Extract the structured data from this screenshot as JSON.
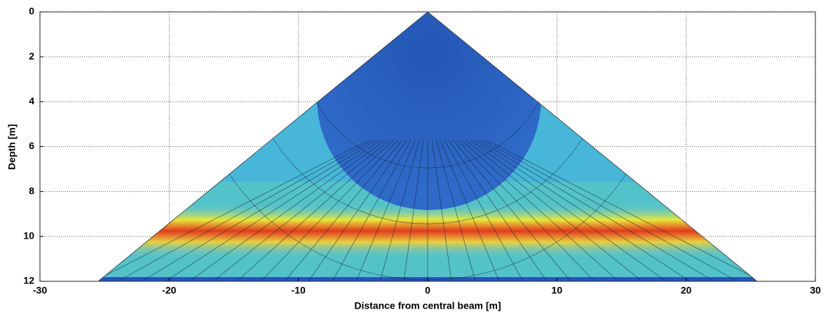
{
  "chart_data": {
    "type": "heatmap",
    "x_label": "Distance from central beam [m]",
    "y_label": "Depth [m]",
    "xlim": [
      -30,
      30
    ],
    "xticks": [
      -30,
      -20,
      -10,
      0,
      10,
      20,
      30
    ],
    "ylim": [
      0,
      12
    ],
    "yticks": [
      0,
      2,
      4,
      6,
      8,
      10,
      12
    ],
    "y_inverted": true,
    "grid": true
  }
}
